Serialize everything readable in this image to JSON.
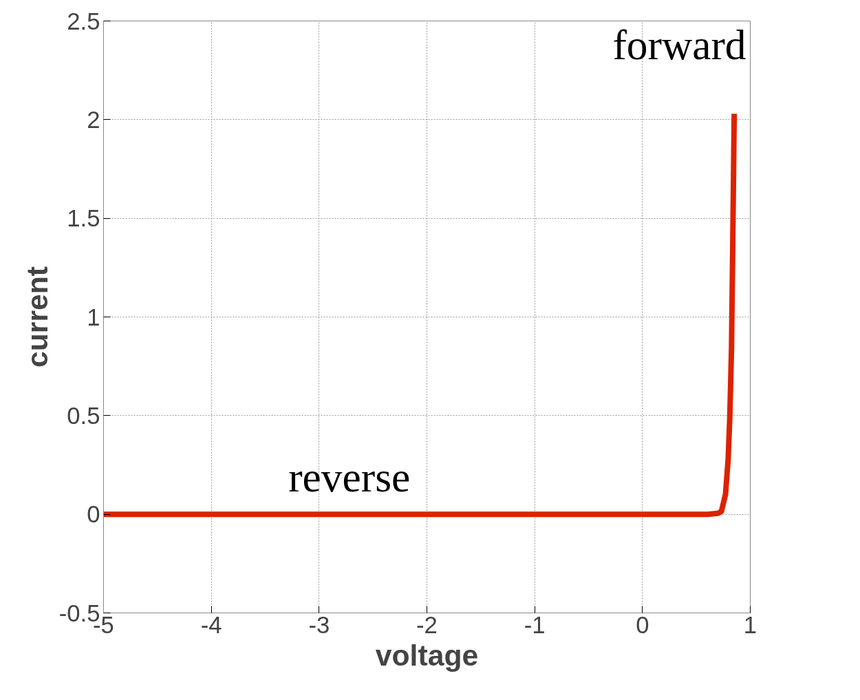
{
  "chart_data": {
    "type": "line",
    "xlabel": "voltage",
    "ylabel": "current",
    "x": [
      -5,
      -3,
      -1,
      0,
      0.5,
      0.607,
      0.7,
      0.732,
      0.77,
      0.795,
      0.81,
      0.826,
      0.838,
      0.851
    ],
    "series": [
      {
        "color": "#dd2200",
        "values": [
          0,
          0,
          0,
          0,
          0,
          0,
          0.005,
          0.014,
          0.1,
          0.28,
          0.49,
          0.84,
          1.39,
          2.03
        ]
      }
    ],
    "xlim": [
      -5,
      1
    ],
    "ylim": [
      -0.5,
      2.5
    ],
    "xticks": [
      -5,
      -4,
      -3,
      -2,
      -1,
      0,
      1
    ],
    "yticks": [
      -0.5,
      0,
      0.5,
      1,
      1.5,
      2,
      2.5
    ],
    "grid": true,
    "marker": "none",
    "line_style": "solid",
    "annotations": [
      "forward",
      "reverse"
    ]
  }
}
